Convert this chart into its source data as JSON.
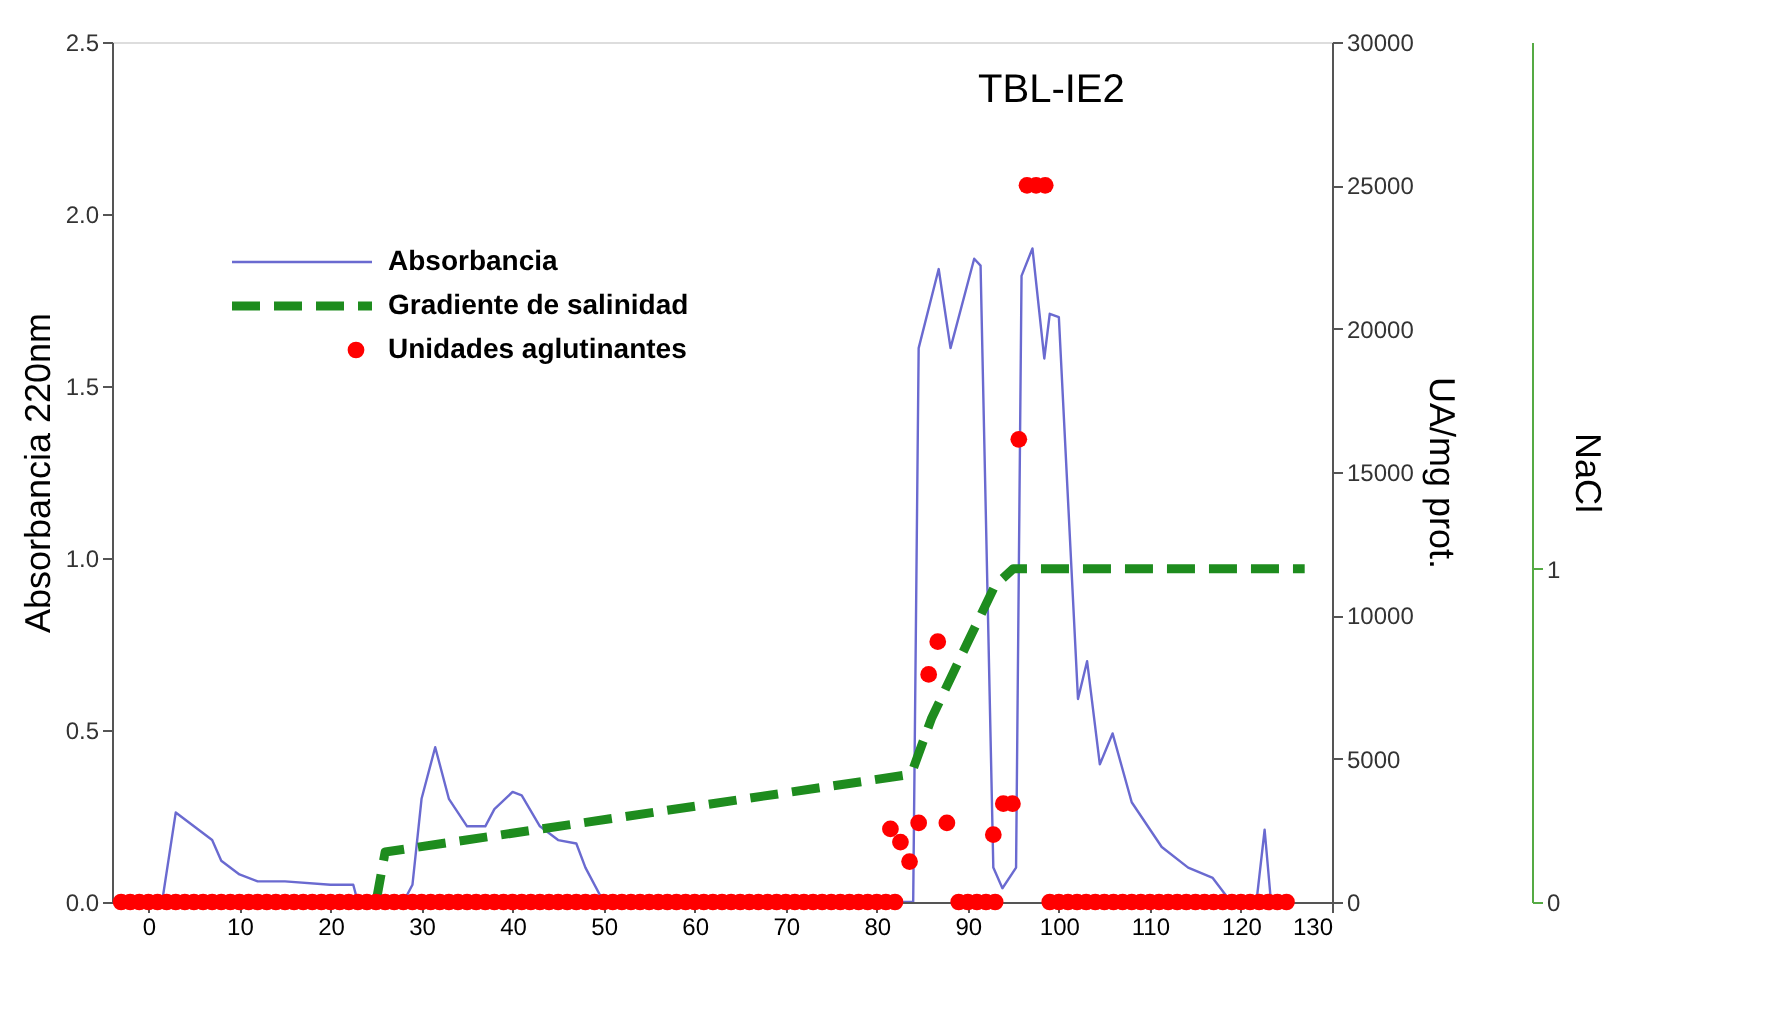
{
  "chart_data": {
    "type": "line",
    "xlim": [
      -4,
      130
    ],
    "xticks": [
      0,
      10,
      20,
      30,
      40,
      50,
      60,
      70,
      80,
      90,
      100,
      110,
      120,
      130
    ],
    "ylim": [
      0,
      2.5
    ],
    "yticks": [
      {
        "value": 0,
        "label": "0.0"
      },
      0.5,
      {
        "value": 1,
        "label": "1.0"
      },
      1.5,
      {
        "value": 2,
        "label": "2.0"
      },
      2.5
    ],
    "ylabel": "Absorbancia 220nm",
    "y2lim": [
      0,
      30000
    ],
    "y2ticks": [
      0,
      5000,
      10000,
      15000,
      20000,
      25000,
      30000
    ],
    "y2label": "UA/mg prot.",
    "y3lim": [
      0,
      2.58
    ],
    "y3ticks": [
      0,
      1
    ],
    "y3label": "NaCl",
    "grid": false,
    "legend": "top left",
    "annotations": [
      "TBL-IE2"
    ],
    "series": [
      {
        "name": "Absorbancia",
        "axis": "y",
        "color": "#6a6ad0",
        "line_style": "solid",
        "x": [
          0,
          1.5,
          3,
          5,
          7,
          8,
          10,
          12,
          15,
          20,
          22.5,
          23,
          28,
          29,
          30,
          31.5,
          33,
          35,
          37,
          38,
          40,
          41,
          43,
          45,
          47,
          48,
          50,
          84,
          84.6,
          86.8,
          88.1,
          90.7,
          91.4,
          92.8,
          93.8,
          95.3,
          95.9,
          97.1,
          98.4,
          99,
          100,
          102.1,
          103.1,
          104.5,
          105.9,
          108,
          111.3,
          114.2,
          116.9,
          118.9,
          121.7,
          122.6,
          123.3,
          125.5
        ],
        "values": [
          0,
          0,
          0.26,
          0.22,
          0.18,
          0.12,
          0.08,
          0.06,
          0.06,
          0.05,
          0.05,
          0,
          0,
          0.05,
          0.3,
          0.45,
          0.3,
          0.22,
          0.22,
          0.27,
          0.32,
          0.31,
          0.22,
          0.18,
          0.17,
          0.1,
          0,
          0,
          1.61,
          1.84,
          1.61,
          1.87,
          1.85,
          0.1,
          0.04,
          0.1,
          1.82,
          1.9,
          1.58,
          1.71,
          1.7,
          0.59,
          0.7,
          0.4,
          0.49,
          0.29,
          0.16,
          0.1,
          0.07,
          0,
          0,
          0.21,
          0,
          0
        ]
      },
      {
        "name": "Gradiente de salinidad",
        "axis": "y3",
        "color": "#1e8c1e",
        "line_style": "dashed",
        "x": [
          25,
          26,
          83,
          84,
          86,
          90,
          93,
          95,
          127
        ],
        "values": [
          0,
          0.15,
          0.38,
          0.4,
          0.55,
          0.78,
          0.95,
          1.0,
          1.0
        ]
      },
      {
        "name": "Unidades aglutinantes",
        "type": "scatter",
        "axis": "y2",
        "color": "#ff0000",
        "marker": "circle",
        "x": [
          -3,
          -2,
          -1,
          0,
          1,
          2,
          3,
          4,
          5,
          6,
          7,
          8,
          9,
          10,
          11,
          12,
          13,
          14,
          15,
          16,
          17,
          18,
          19,
          20,
          21,
          22,
          23,
          24,
          25,
          26,
          27,
          28,
          29,
          30,
          31,
          32,
          33,
          34,
          35,
          36,
          37,
          38,
          39,
          40,
          41,
          42,
          43,
          44,
          45,
          46,
          47,
          48,
          49,
          50,
          51,
          52,
          53,
          54,
          55,
          56,
          57,
          58,
          59,
          60,
          61,
          62,
          63,
          64,
          65,
          66,
          67,
          68,
          69,
          70,
          71,
          72,
          73,
          74,
          75,
          76,
          77,
          78,
          79,
          80,
          81,
          82,
          89,
          90,
          91,
          92,
          93,
          99,
          100,
          101,
          102,
          103,
          104,
          105,
          106,
          107,
          108,
          109,
          110,
          111,
          112,
          113,
          114,
          115,
          116,
          117,
          118,
          119,
          120,
          121,
          122,
          123,
          124,
          125,
          81.5,
          82.6,
          83.6,
          84.6,
          85.7,
          86.7,
          87.7,
          92.8,
          93.9,
          94.9,
          95.6,
          96.5,
          97.5,
          98.5
        ],
        "values": [
          0,
          0,
          0,
          0,
          0,
          0,
          0,
          0,
          0,
          0,
          0,
          0,
          0,
          0,
          0,
          0,
          0,
          0,
          0,
          0,
          0,
          0,
          0,
          0,
          0,
          0,
          0,
          0,
          0,
          0,
          0,
          0,
          0,
          0,
          0,
          0,
          0,
          0,
          0,
          0,
          0,
          0,
          0,
          0,
          0,
          0,
          0,
          0,
          0,
          0,
          0,
          0,
          0,
          0,
          0,
          0,
          0,
          0,
          0,
          0,
          0,
          0,
          0,
          0,
          0,
          0,
          0,
          0,
          0,
          0,
          0,
          0,
          0,
          0,
          0,
          0,
          0,
          0,
          0,
          0,
          0,
          0,
          0,
          0,
          0,
          0,
          0,
          0,
          0,
          0,
          0,
          0,
          0,
          0,
          0,
          0,
          0,
          0,
          0,
          0,
          0,
          0,
          0,
          0,
          0,
          0,
          0,
          0,
          0,
          0,
          0,
          0,
          0,
          0,
          0,
          0,
          0,
          0,
          2550,
          2090,
          1410,
          2760,
          7940,
          9080,
          2760,
          2350,
          3430,
          3430,
          16140,
          25000,
          25000,
          25000
        ]
      }
    ]
  }
}
